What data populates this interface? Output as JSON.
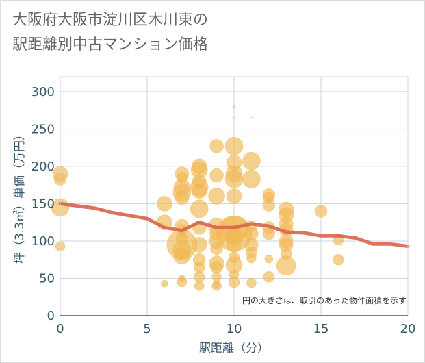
{
  "chart_data": {
    "type": "scatter",
    "title": "大阪府大阪市淀川区木川東の駅距離別中古マンション価格",
    "title_lines": [
      "大阪府大阪市淀川区木川東の",
      "駅距離別中古マンション価格"
    ],
    "xlabel": "駅距離（分）",
    "ylabel": "坪（3.3㎡）単価（万円）",
    "xlim": [
      0,
      20
    ],
    "ylim": [
      0,
      320
    ],
    "xticks": [
      0,
      5,
      10,
      15,
      20
    ],
    "yticks": [
      0,
      50,
      100,
      150,
      200,
      250,
      300
    ],
    "xtick_labels": [
      "0",
      "5",
      "10",
      "15",
      "20"
    ],
    "ytick_labels": [
      "0",
      "50",
      "100",
      "150",
      "200",
      "250",
      "300"
    ],
    "grid": true,
    "annotation": "円の大きさは、取引のあった物件面積を示す",
    "bubble_color": "#f0b955",
    "line_color": "#d9644a",
    "bubbles": [
      {
        "x": 0,
        "y": 190,
        "s": 11
      },
      {
        "x": 0,
        "y": 183,
        "s": 9
      },
      {
        "x": 0,
        "y": 145,
        "s": 13
      },
      {
        "x": 0,
        "y": 93,
        "s": 7
      },
      {
        "x": 6,
        "y": 150,
        "s": 11
      },
      {
        "x": 6,
        "y": 125,
        "s": 11
      },
      {
        "x": 6,
        "y": 43,
        "s": 5
      },
      {
        "x": 7,
        "y": 190,
        "s": 10
      },
      {
        "x": 7,
        "y": 185,
        "s": 8
      },
      {
        "x": 7,
        "y": 172,
        "s": 12
      },
      {
        "x": 7,
        "y": 165,
        "s": 13
      },
      {
        "x": 7,
        "y": 158,
        "s": 10
      },
      {
        "x": 7,
        "y": 120,
        "s": 10
      },
      {
        "x": 7,
        "y": 115,
        "s": 8
      },
      {
        "x": 7,
        "y": 103,
        "s": 9
      },
      {
        "x": 7,
        "y": 95,
        "s": 22
      },
      {
        "x": 7,
        "y": 88,
        "s": 13
      },
      {
        "x": 7,
        "y": 80,
        "s": 12
      },
      {
        "x": 7,
        "y": 50,
        "s": 5
      },
      {
        "x": 7,
        "y": 45,
        "s": 7
      },
      {
        "x": 8,
        "y": 200,
        "s": 11
      },
      {
        "x": 8,
        "y": 195,
        "s": 12
      },
      {
        "x": 8,
        "y": 180,
        "s": 10
      },
      {
        "x": 8,
        "y": 172,
        "s": 13
      },
      {
        "x": 8,
        "y": 167,
        "s": 11
      },
      {
        "x": 8,
        "y": 143,
        "s": 13
      },
      {
        "x": 8,
        "y": 118,
        "s": 10
      },
      {
        "x": 8,
        "y": 95,
        "s": 11
      },
      {
        "x": 8,
        "y": 75,
        "s": 9
      },
      {
        "x": 8,
        "y": 65,
        "s": 8
      },
      {
        "x": 8,
        "y": 52,
        "s": 8
      },
      {
        "x": 8,
        "y": 40,
        "s": 7
      },
      {
        "x": 9,
        "y": 227,
        "s": 10
      },
      {
        "x": 9,
        "y": 188,
        "s": 10
      },
      {
        "x": 9,
        "y": 160,
        "s": 12
      },
      {
        "x": 9,
        "y": 120,
        "s": 12
      },
      {
        "x": 9,
        "y": 110,
        "s": 10
      },
      {
        "x": 9,
        "y": 100,
        "s": 11
      },
      {
        "x": 9,
        "y": 90,
        "s": 9
      },
      {
        "x": 9,
        "y": 70,
        "s": 11
      },
      {
        "x": 9,
        "y": 65,
        "s": 9
      },
      {
        "x": 9,
        "y": 52,
        "s": 7
      },
      {
        "x": 9,
        "y": 42,
        "s": 5
      },
      {
        "x": 9,
        "y": 40,
        "s": 7
      },
      {
        "x": 10,
        "y": 280,
        "s": 1
      },
      {
        "x": 10,
        "y": 265,
        "s": 1
      },
      {
        "x": 10,
        "y": 227,
        "s": 13
      },
      {
        "x": 10,
        "y": 205,
        "s": 11
      },
      {
        "x": 10,
        "y": 190,
        "s": 12
      },
      {
        "x": 10,
        "y": 183,
        "s": 13
      },
      {
        "x": 10,
        "y": 160,
        "s": 11
      },
      {
        "x": 10,
        "y": 115,
        "s": 20
      },
      {
        "x": 10,
        "y": 110,
        "s": 26
      },
      {
        "x": 10,
        "y": 107,
        "s": 13
      },
      {
        "x": 10,
        "y": 95,
        "s": 11
      },
      {
        "x": 10,
        "y": 78,
        "s": 8
      },
      {
        "x": 10,
        "y": 68,
        "s": 12
      },
      {
        "x": 10,
        "y": 55,
        "s": 7
      },
      {
        "x": 10,
        "y": 45,
        "s": 8
      },
      {
        "x": 11,
        "y": 265,
        "s": 1
      },
      {
        "x": 11,
        "y": 207,
        "s": 13
      },
      {
        "x": 11,
        "y": 183,
        "s": 13
      },
      {
        "x": 11,
        "y": 120,
        "s": 8
      },
      {
        "x": 11,
        "y": 110,
        "s": 10
      },
      {
        "x": 11,
        "y": 95,
        "s": 10
      },
      {
        "x": 11,
        "y": 85,
        "s": 8
      },
      {
        "x": 11,
        "y": 77,
        "s": 7
      },
      {
        "x": 11,
        "y": 44,
        "s": 7
      },
      {
        "x": 12,
        "y": 162,
        "s": 9
      },
      {
        "x": 12,
        "y": 158,
        "s": 8
      },
      {
        "x": 12,
        "y": 148,
        "s": 9
      },
      {
        "x": 12,
        "y": 118,
        "s": 9
      },
      {
        "x": 12,
        "y": 110,
        "s": 9
      },
      {
        "x": 12,
        "y": 76,
        "s": 6
      },
      {
        "x": 12,
        "y": 52,
        "s": 8
      },
      {
        "x": 13,
        "y": 142,
        "s": 11
      },
      {
        "x": 13,
        "y": 135,
        "s": 11
      },
      {
        "x": 13,
        "y": 123,
        "s": 10
      },
      {
        "x": 13,
        "y": 115,
        "s": 10
      },
      {
        "x": 13,
        "y": 100,
        "s": 10
      },
      {
        "x": 13,
        "y": 95,
        "s": 10
      },
      {
        "x": 13,
        "y": 83,
        "s": 8
      },
      {
        "x": 13,
        "y": 67,
        "s": 14
      },
      {
        "x": 15,
        "y": 140,
        "s": 9
      },
      {
        "x": 16,
        "y": 102,
        "s": 8
      },
      {
        "x": 16,
        "y": 75,
        "s": 8
      }
    ],
    "series": [
      {
        "type": "line",
        "x": [
          0,
          1,
          2,
          3,
          4,
          5,
          6,
          7,
          8,
          9,
          10,
          11,
          12,
          13,
          14,
          15,
          16,
          17,
          18,
          19,
          20
        ],
        "values": [
          150,
          147,
          144,
          138,
          134,
          130,
          118,
          114,
          125,
          118,
          118,
          123,
          120,
          112,
          111,
          107,
          107,
          104,
          96,
          96,
          93
        ]
      }
    ]
  }
}
